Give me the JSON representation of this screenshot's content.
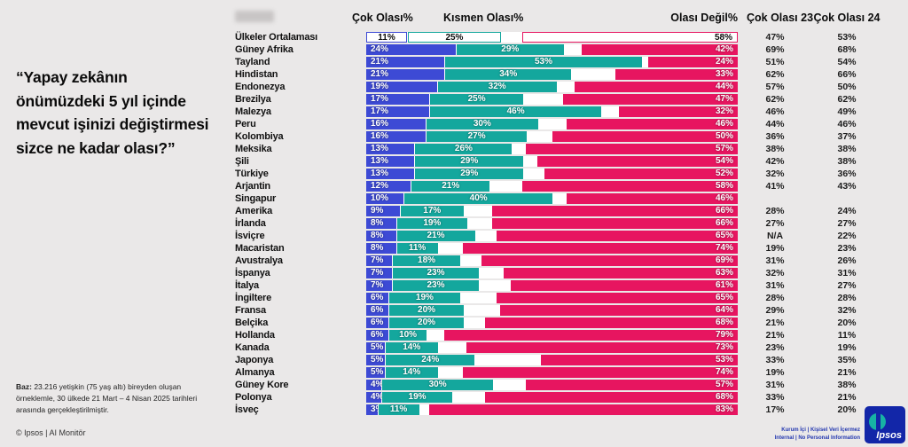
{
  "title": "“Yapay zekânın önümüzdeki 5 yıl içinde mevcut işinizi değiştirmesi sizce ne kadar olası?”",
  "headers": {
    "very": "Çok Olası%",
    "somewhat": "Kısmen Olası%",
    "not_likely": "Olası Değil%",
    "y23": "Çok Olası 23",
    "y24": "Çok Olası 24"
  },
  "footer": {
    "base_label": "Baz:",
    "base_text": " 23.216 yetişkin (75 yaş altı) bireyden oluşan örneklemle, 30 ülkede 21 Mart – 4 Nisan 2025 tarihleri arasında gerçekleştirilmiştir.",
    "copyright": "© Ipsos | AI Monitör"
  },
  "branding": {
    "confidential_line1": "Kurum İçi | Kişisel Veri İçermez",
    "confidential_line2": "Internal | No Personal Information",
    "logo_text": "Ipsos"
  },
  "colors": {
    "very": "#3d4ad5",
    "somewhat": "#14a79d",
    "not_likely": "#e71560",
    "background": "#eae8e8"
  },
  "chart_data": {
    "type": "bar",
    "stacked": true,
    "orientation": "horizontal",
    "series_names": [
      "Çok Olası%",
      "Kısmen Olası%",
      "Olası Değil%"
    ],
    "extra_columns": [
      "Çok Olası 23",
      "Çok Olası 24"
    ],
    "xlim": [
      0,
      100
    ],
    "note": "Pink segment is right-anchored; white middle gap = undeclared remainder",
    "rows": [
      {
        "label": "Ülkeler Ortalaması",
        "very": 11,
        "somewhat": 25,
        "not": 58,
        "y23": "47%",
        "y24": "53%",
        "outlined": true
      },
      {
        "label": "Güney Afrika",
        "very": 24,
        "somewhat": 29,
        "not": 42,
        "y23": "69%",
        "y24": "68%"
      },
      {
        "label": "Tayland",
        "very": 21,
        "somewhat": 53,
        "not": 24,
        "y23": "51%",
        "y24": "54%"
      },
      {
        "label": "Hindistan",
        "very": 21,
        "somewhat": 34,
        "not": 33,
        "y23": "62%",
        "y24": "66%"
      },
      {
        "label": "Endonezya",
        "very": 19,
        "somewhat": 32,
        "not": 44,
        "y23": "57%",
        "y24": "50%"
      },
      {
        "label": "Brezilya",
        "very": 17,
        "somewhat": 25,
        "not": 47,
        "y23": "62%",
        "y24": "62%"
      },
      {
        "label": "Malezya",
        "very": 17,
        "somewhat": 46,
        "not": 32,
        "y23": "46%",
        "y24": "49%"
      },
      {
        "label": "Peru",
        "very": 16,
        "somewhat": 30,
        "not": 46,
        "y23": "44%",
        "y24": "46%"
      },
      {
        "label": "Kolombiya",
        "very": 16,
        "somewhat": 27,
        "not": 50,
        "y23": "36%",
        "y24": "37%"
      },
      {
        "label": "Meksika",
        "very": 13,
        "somewhat": 26,
        "not": 57,
        "y23": "38%",
        "y24": "38%"
      },
      {
        "label": "Şili",
        "very": 13,
        "somewhat": 29,
        "not": 54,
        "y23": "42%",
        "y24": "38%"
      },
      {
        "label": "Türkiye",
        "very": 13,
        "somewhat": 29,
        "not": 52,
        "y23": "32%",
        "y24": "36%"
      },
      {
        "label": "Arjantin",
        "very": 12,
        "somewhat": 21,
        "not": 58,
        "y23": "41%",
        "y24": "43%"
      },
      {
        "label": "Singapur",
        "very": 10,
        "somewhat": 40,
        "not": 46,
        "y23": "",
        "y24": ""
      },
      {
        "label": "Amerika",
        "very": 9,
        "somewhat": 17,
        "not": 66,
        "y23": "28%",
        "y24": "24%"
      },
      {
        "label": "İrlanda",
        "very": 8,
        "somewhat": 19,
        "not": 66,
        "y23": "27%",
        "y24": "27%"
      },
      {
        "label": "İsviçre",
        "very": 8,
        "somewhat": 21,
        "not": 65,
        "y23": "N/A",
        "y24": "22%"
      },
      {
        "label": "Macaristan",
        "very": 8,
        "somewhat": 11,
        "not": 74,
        "y23": "19%",
        "y24": "23%"
      },
      {
        "label": "Avustralya",
        "very": 7,
        "somewhat": 18,
        "not": 69,
        "y23": "31%",
        "y24": "26%"
      },
      {
        "label": "İspanya",
        "very": 7,
        "somewhat": 23,
        "not": 63,
        "y23": "32%",
        "y24": "31%"
      },
      {
        "label": "İtalya",
        "very": 7,
        "somewhat": 23,
        "not": 61,
        "y23": "31%",
        "y24": "27%"
      },
      {
        "label": "İngiltere",
        "very": 6,
        "somewhat": 19,
        "not": 65,
        "y23": "28%",
        "y24": "28%"
      },
      {
        "label": "Fransa",
        "very": 6,
        "somewhat": 20,
        "not": 64,
        "y23": "29%",
        "y24": "32%"
      },
      {
        "label": "Belçika",
        "very": 6,
        "somewhat": 20,
        "not": 68,
        "y23": "21%",
        "y24": "20%"
      },
      {
        "label": "Hollanda",
        "very": 6,
        "somewhat": 10,
        "not": 79,
        "y23": "21%",
        "y24": "11%"
      },
      {
        "label": "Kanada",
        "very": 5,
        "somewhat": 14,
        "not": 73,
        "y23": "23%",
        "y24": "19%"
      },
      {
        "label": "Japonya",
        "very": 5,
        "somewhat": 24,
        "not": 53,
        "y23": "33%",
        "y24": "35%"
      },
      {
        "label": "Almanya",
        "very": 5,
        "somewhat": 14,
        "not": 74,
        "y23": "19%",
        "y24": "21%"
      },
      {
        "label": "Güney Kore",
        "very": 4,
        "somewhat": 30,
        "not": 57,
        "y23": "31%",
        "y24": "38%"
      },
      {
        "label": "Polonya",
        "very": 4,
        "somewhat": 19,
        "not": 68,
        "y23": "33%",
        "y24": "21%"
      },
      {
        "label": "İsveç",
        "very": 3,
        "somewhat": 11,
        "not": 83,
        "y23": "17%",
        "y24": "20%"
      }
    ]
  }
}
